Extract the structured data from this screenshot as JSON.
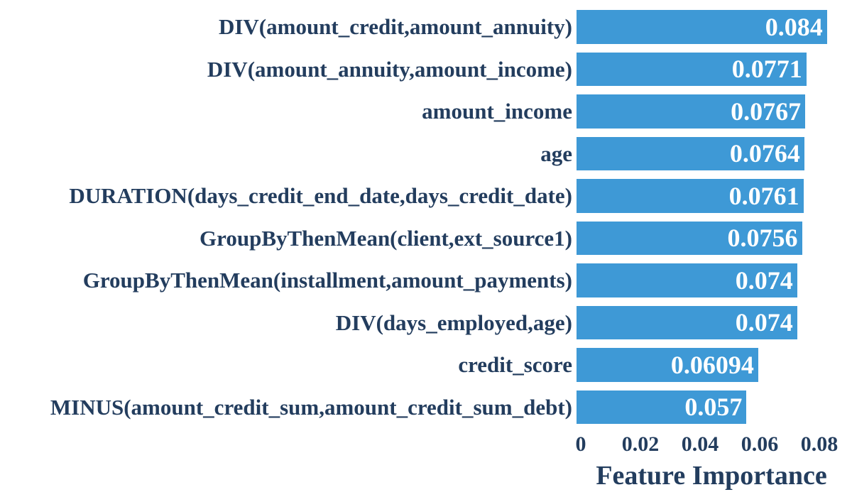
{
  "chart_data": {
    "type": "bar",
    "orientation": "horizontal",
    "title": "",
    "xlabel": "Feature Importance",
    "ylabel": "",
    "categories": [
      "DIV(amount_credit,amount_annuity)",
      "DIV(amount_annuity,amount_income)",
      "amount_income",
      "age",
      "DURATION(days_credit_end_date,days_credit_date)",
      "GroupByThenMean(client,ext_source1)",
      "GroupByThenMean(installment,amount_payments)",
      "DIV(days_employed,age)",
      "credit_score",
      "MINUS(amount_credit_sum,amount_credit_sum_debt)"
    ],
    "values": [
      0.084,
      0.0771,
      0.0767,
      0.0764,
      0.0761,
      0.0756,
      0.074,
      0.074,
      0.06094,
      0.057
    ],
    "value_labels": [
      "0.084",
      "0.0771",
      "0.0767",
      "0.0764",
      "0.0761",
      "0.0756",
      "0.074",
      "0.074",
      "0.06094",
      "0.057"
    ],
    "xticks": [
      {
        "value": 0,
        "label": "0"
      },
      {
        "value": 0.02,
        "label": "0.02"
      },
      {
        "value": 0.04,
        "label": "0.04"
      },
      {
        "value": 0.06,
        "label": "0.06"
      },
      {
        "value": 0.08,
        "label": "0.08"
      }
    ],
    "xlim": [
      0,
      0.0875
    ],
    "grid": false,
    "legend": null,
    "colors": {
      "bar": "#3E99D6",
      "text": "#233D5E",
      "value_text": "#FFFFFF",
      "background": "#FFFFFF"
    }
  }
}
